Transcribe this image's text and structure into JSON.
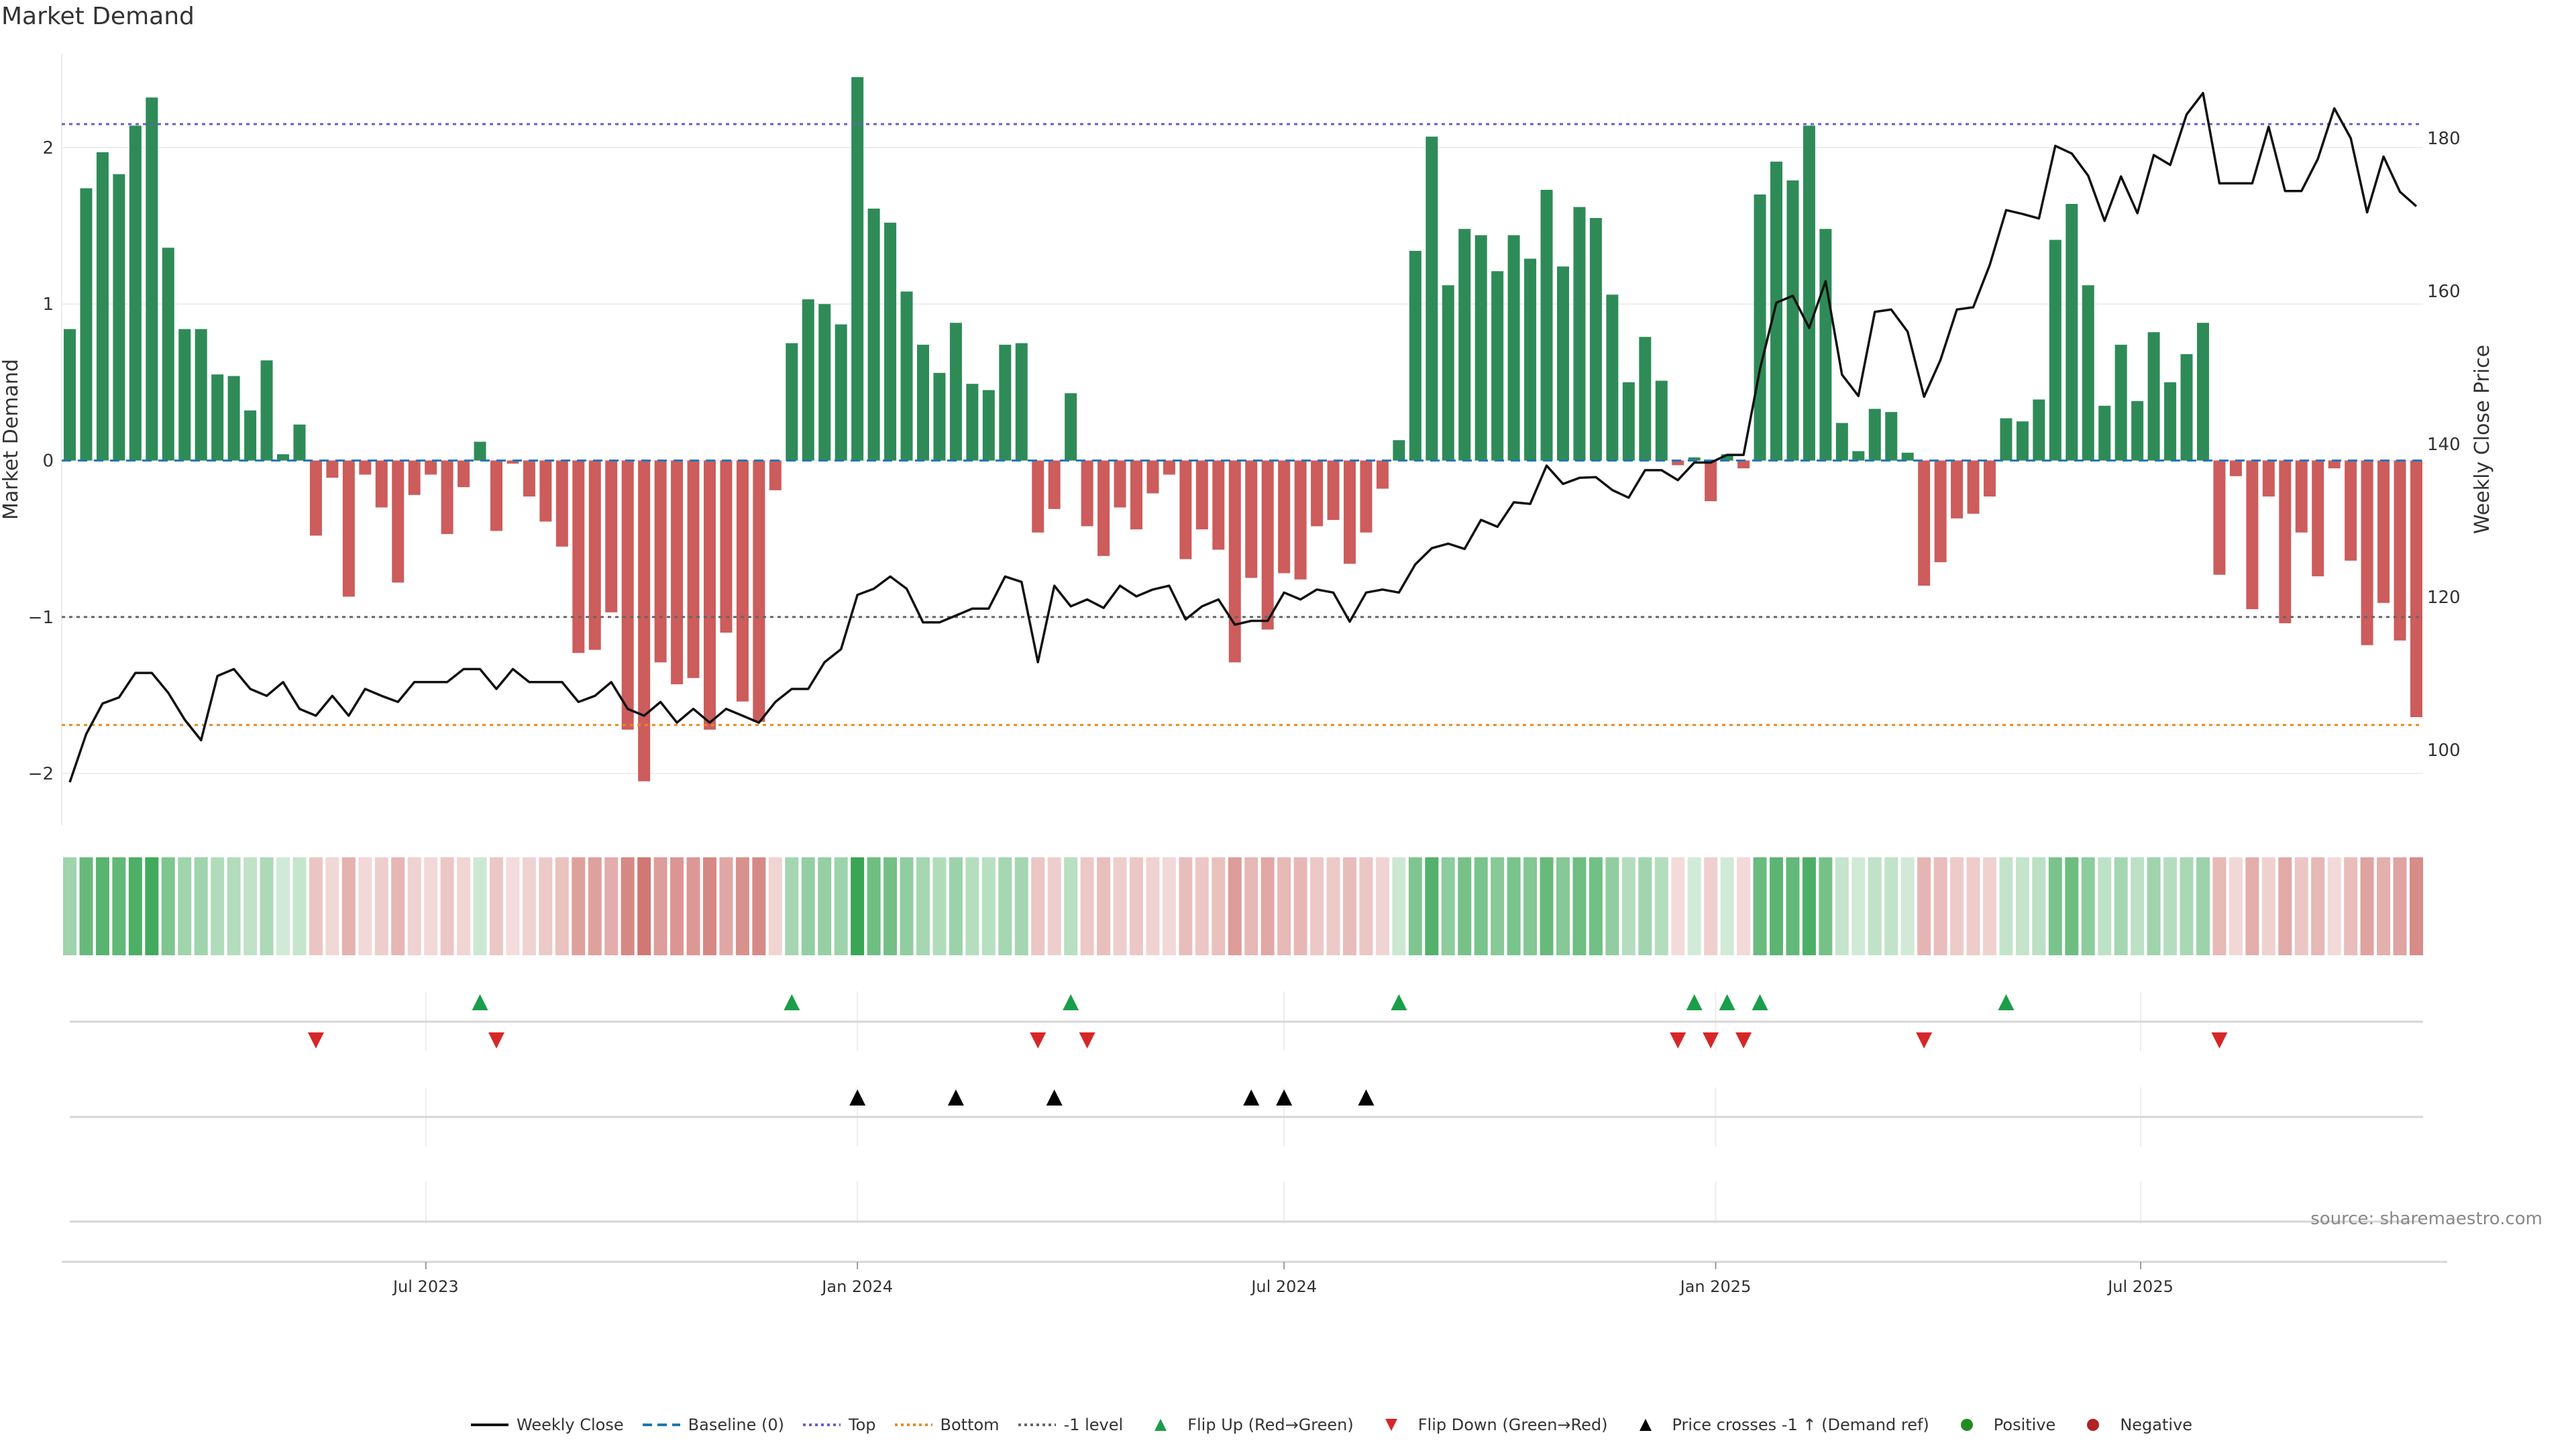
{
  "chart_data": {
    "type": "bar",
    "title": "Market Demand",
    "ylabel": "Market Demand",
    "y2label": "Weekly Close Price",
    "ylim": [
      -2.33,
      2.6
    ],
    "y2lim": [
      90.2,
      191.05
    ],
    "yticks": [
      -2,
      -1,
      0,
      1,
      2
    ],
    "y2ticks": [
      100,
      120,
      140,
      160,
      180
    ],
    "grid": true,
    "reference_lines": {
      "top": 2.15,
      "baseline": 0,
      "minus_one": -1,
      "bottom": -1.69
    },
    "xticks": [
      {
        "label": "Jul 2023",
        "week_index": 21.7
      },
      {
        "label": "Jan 2024",
        "week_index": 48.0
      },
      {
        "label": "Jul 2024",
        "week_index": 74.0
      },
      {
        "label": "Jan 2025",
        "week_index": 100.3
      },
      {
        "label": "Jul 2025",
        "week_index": 126.2
      }
    ],
    "demand": [
      0.84,
      1.74,
      1.97,
      1.83,
      2.14,
      2.32,
      1.36,
      0.84,
      0.84,
      0.55,
      0.54,
      0.32,
      0.64,
      0.04,
      0.23,
      -0.48,
      -0.11,
      -0.87,
      -0.09,
      -0.3,
      -0.78,
      -0.22,
      -0.09,
      -0.47,
      -0.17,
      0.12,
      -0.45,
      -0.02,
      -0.23,
      -0.39,
      -0.55,
      -1.23,
      -1.21,
      -0.97,
      -1.72,
      -2.05,
      -1.29,
      -1.43,
      -1.39,
      -1.72,
      -1.1,
      -1.54,
      -1.67,
      -0.19,
      0.75,
      1.03,
      1.0,
      0.87,
      2.45,
      1.61,
      1.52,
      1.08,
      0.74,
      0.56,
      0.88,
      0.49,
      0.45,
      0.74,
      0.75,
      -0.46,
      -0.31,
      0.43,
      -0.42,
      -0.61,
      -0.3,
      -0.44,
      -0.21,
      -0.09,
      -0.63,
      -0.44,
      -0.57,
      -1.29,
      -0.75,
      -1.08,
      -0.72,
      -0.76,
      -0.42,
      -0.38,
      -0.66,
      -0.46,
      -0.18,
      0.13,
      1.34,
      2.07,
      1.12,
      1.48,
      1.44,
      1.21,
      1.44,
      1.29,
      1.73,
      1.24,
      1.62,
      1.55,
      1.06,
      0.5,
      0.79,
      0.51,
      -0.03,
      0.02,
      -0.26,
      0.04,
      -0.05,
      1.7,
      1.91,
      1.79,
      2.14,
      1.48,
      0.24,
      0.06,
      0.33,
      0.31,
      0.05,
      -0.8,
      -0.65,
      -0.37,
      -0.34,
      -0.23,
      0.27,
      0.25,
      0.39,
      1.41,
      1.64,
      1.12,
      0.35,
      0.74,
      0.38,
      0.82,
      0.5,
      0.68,
      0.88,
      -0.73,
      -0.1,
      -0.95,
      -0.23,
      -1.04,
      -0.46,
      -0.74,
      -0.05,
      -0.64,
      -1.18,
      -0.91,
      -1.15,
      -1.64
    ],
    "weekly_close": [
      95.8,
      102.1,
      106.1,
      106.9,
      110.1,
      110.1,
      107.5,
      104.0,
      101.3,
      109.7,
      110.6,
      108.0,
      107.1,
      108.9,
      105.4,
      104.5,
      107.1,
      104.5,
      108.0,
      107.1,
      106.3,
      108.9,
      108.9,
      108.9,
      110.6,
      110.6,
      108.0,
      110.6,
      108.9,
      108.9,
      108.9,
      106.3,
      107.1,
      108.9,
      105.4,
      104.5,
      106.3,
      103.6,
      105.4,
      103.6,
      105.4,
      104.5,
      103.6,
      106.3,
      108.0,
      108.0,
      111.5,
      113.2,
      120.3,
      121.1,
      122.7,
      121.1,
      116.7,
      116.7,
      117.6,
      118.5,
      118.5,
      122.7,
      122.0,
      111.5,
      121.5,
      118.8,
      119.7,
      118.6,
      121.5,
      120.1,
      121.0,
      121.5,
      117.1,
      118.8,
      119.7,
      116.4,
      116.9,
      116.9,
      120.6,
      119.7,
      121.0,
      120.6,
      116.8,
      120.6,
      121.0,
      120.6,
      124.3,
      126.4,
      127.0,
      126.3,
      130.1,
      129.2,
      132.4,
      132.2,
      137.2,
      134.8,
      135.6,
      135.7,
      134.0,
      133.0,
      136.6,
      136.6,
      135.3,
      137.6,
      137.6,
      138.6,
      138.6,
      149.8,
      158.5,
      159.4,
      155.2,
      161.3,
      149.1,
      146.3,
      157.3,
      157.6,
      154.7,
      146.2,
      151.0,
      157.6,
      157.9,
      163.4,
      170.6,
      170.1,
      169.5,
      179.0,
      178.0,
      175.1,
      169.2,
      175.0,
      170.2,
      177.8,
      176.5,
      183.1,
      185.9,
      174.1,
      174.1,
      174.1,
      181.5,
      173.1,
      173.1,
      177.3,
      183.9,
      180.0,
      170.3,
      177.6,
      173.0,
      171.1
    ],
    "price_cross_indices": [
      48,
      54,
      60,
      72,
      74,
      79
    ],
    "legend": [
      "Weekly Close",
      "Baseline (0)",
      "Top",
      "Bottom",
      "-1 level",
      "Flip Up (Red→Green)",
      "Flip Down (Green→Red)",
      "Price crosses -1 ↑ (Demand ref)",
      "Positive",
      "Negative"
    ],
    "legend_position": "bottom-center",
    "colors": {
      "positive": "#2e8b57",
      "negative": "#cd5c5c",
      "line": "#111111",
      "baseline": "#1f77b4",
      "top": "#6a5acd",
      "bottom": "#e8891b",
      "minus_one": "#666666",
      "flip_up": "#1a9e4a",
      "flip_down": "#d62728",
      "cross": "#000000",
      "heat_pos": "#3aa655",
      "heat_neg": "#c9645f",
      "legend_pos": "#228b22",
      "legend_neg": "#b22222"
    }
  },
  "source": "source: sharemaestro.com"
}
